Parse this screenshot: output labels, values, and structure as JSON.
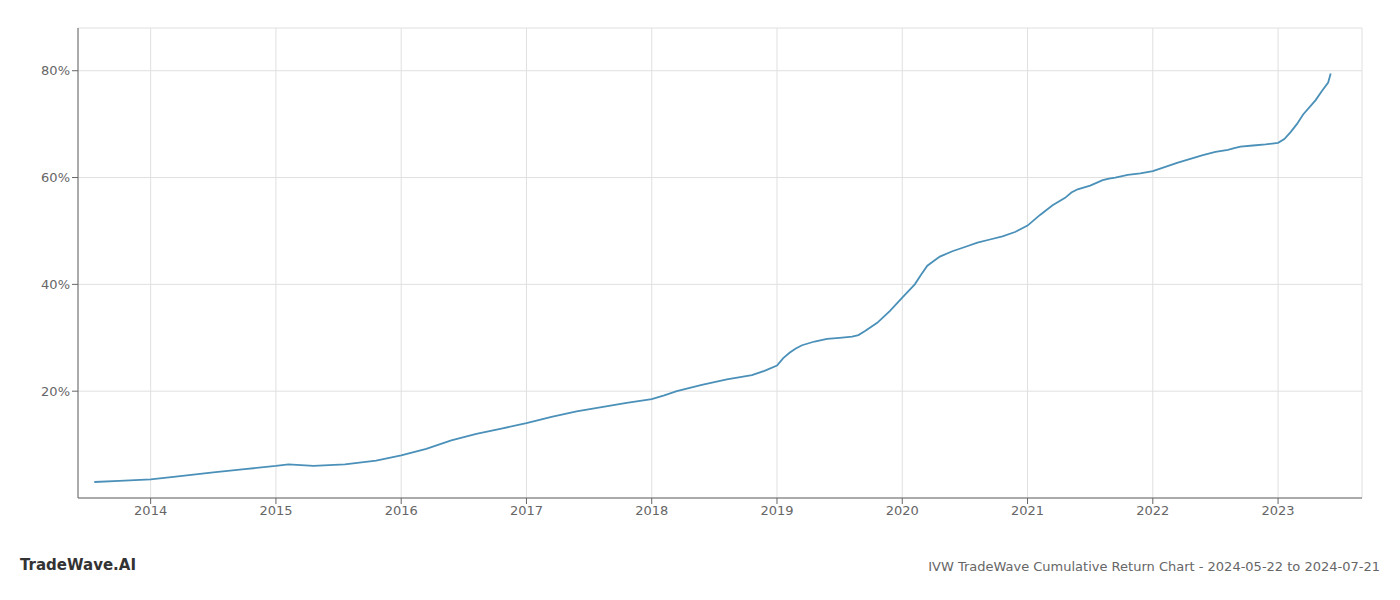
{
  "chart_data": {
    "type": "line",
    "title": "IVW TradeWave Cumulative Return Chart - 2024-05-22 to 2024-07-21",
    "annotations": [
      "TradeWave.AI"
    ],
    "x": [
      2013.55,
      2013.75,
      2014.0,
      2014.2,
      2014.5,
      2014.75,
      2015.0,
      2015.1,
      2015.3,
      2015.55,
      2015.8,
      2016.0,
      2016.2,
      2016.4,
      2016.6,
      2016.8,
      2017.0,
      2017.2,
      2017.4,
      2017.6,
      2017.8,
      2018.0,
      2018.1,
      2018.2,
      2018.4,
      2018.6,
      2018.8,
      2018.9,
      2019.0,
      2019.05,
      2019.1,
      2019.15,
      2019.2,
      2019.3,
      2019.4,
      2019.5,
      2019.6,
      2019.65,
      2019.7,
      2019.8,
      2019.9,
      2020.0,
      2020.1,
      2020.15,
      2020.2,
      2020.3,
      2020.4,
      2020.5,
      2020.6,
      2020.7,
      2020.8,
      2020.9,
      2021.0,
      2021.1,
      2021.2,
      2021.3,
      2021.35,
      2021.4,
      2021.5,
      2021.55,
      2021.6,
      2021.65,
      2021.7,
      2021.8,
      2021.9,
      2022.0,
      2022.1,
      2022.2,
      2022.3,
      2022.4,
      2022.5,
      2022.6,
      2022.65,
      2022.7,
      2022.8,
      2022.9,
      2023.0,
      2023.05,
      2023.1,
      2023.15,
      2023.2,
      2023.3,
      2023.35,
      2023.4,
      2023.42
    ],
    "values": [
      0.03,
      0.032,
      0.035,
      0.04,
      0.048,
      0.054,
      0.06,
      0.063,
      0.06,
      0.063,
      0.07,
      0.08,
      0.092,
      0.108,
      0.12,
      0.13,
      0.14,
      0.152,
      0.162,
      0.17,
      0.178,
      0.185,
      0.192,
      0.2,
      0.212,
      0.222,
      0.23,
      0.238,
      0.248,
      0.262,
      0.272,
      0.28,
      0.286,
      0.293,
      0.298,
      0.3,
      0.302,
      0.305,
      0.312,
      0.328,
      0.35,
      0.375,
      0.4,
      0.418,
      0.435,
      0.452,
      0.462,
      0.47,
      0.478,
      0.484,
      0.49,
      0.498,
      0.51,
      0.53,
      0.548,
      0.562,
      0.572,
      0.578,
      0.585,
      0.59,
      0.595,
      0.598,
      0.6,
      0.605,
      0.608,
      0.612,
      0.62,
      0.628,
      0.635,
      0.642,
      0.648,
      0.652,
      0.655,
      0.658,
      0.66,
      0.662,
      0.665,
      0.672,
      0.685,
      0.7,
      0.718,
      0.745,
      0.762,
      0.778,
      0.795
    ],
    "color": "#4a90b8",
    "xlim": [
      2013.42,
      2023.67
    ],
    "xticks": [
      2014,
      2015,
      2016,
      2017,
      2018,
      2019,
      2020,
      2021,
      2022,
      2023
    ],
    "ylim": [
      0,
      0.88
    ],
    "yticks": [
      {
        "value": 0.2,
        "label": "20%"
      },
      {
        "value": 0.4,
        "label": "40%"
      },
      {
        "value": 0.6,
        "label": "60%"
      },
      {
        "value": 0.8,
        "label": "80%"
      }
    ],
    "grid": true
  }
}
